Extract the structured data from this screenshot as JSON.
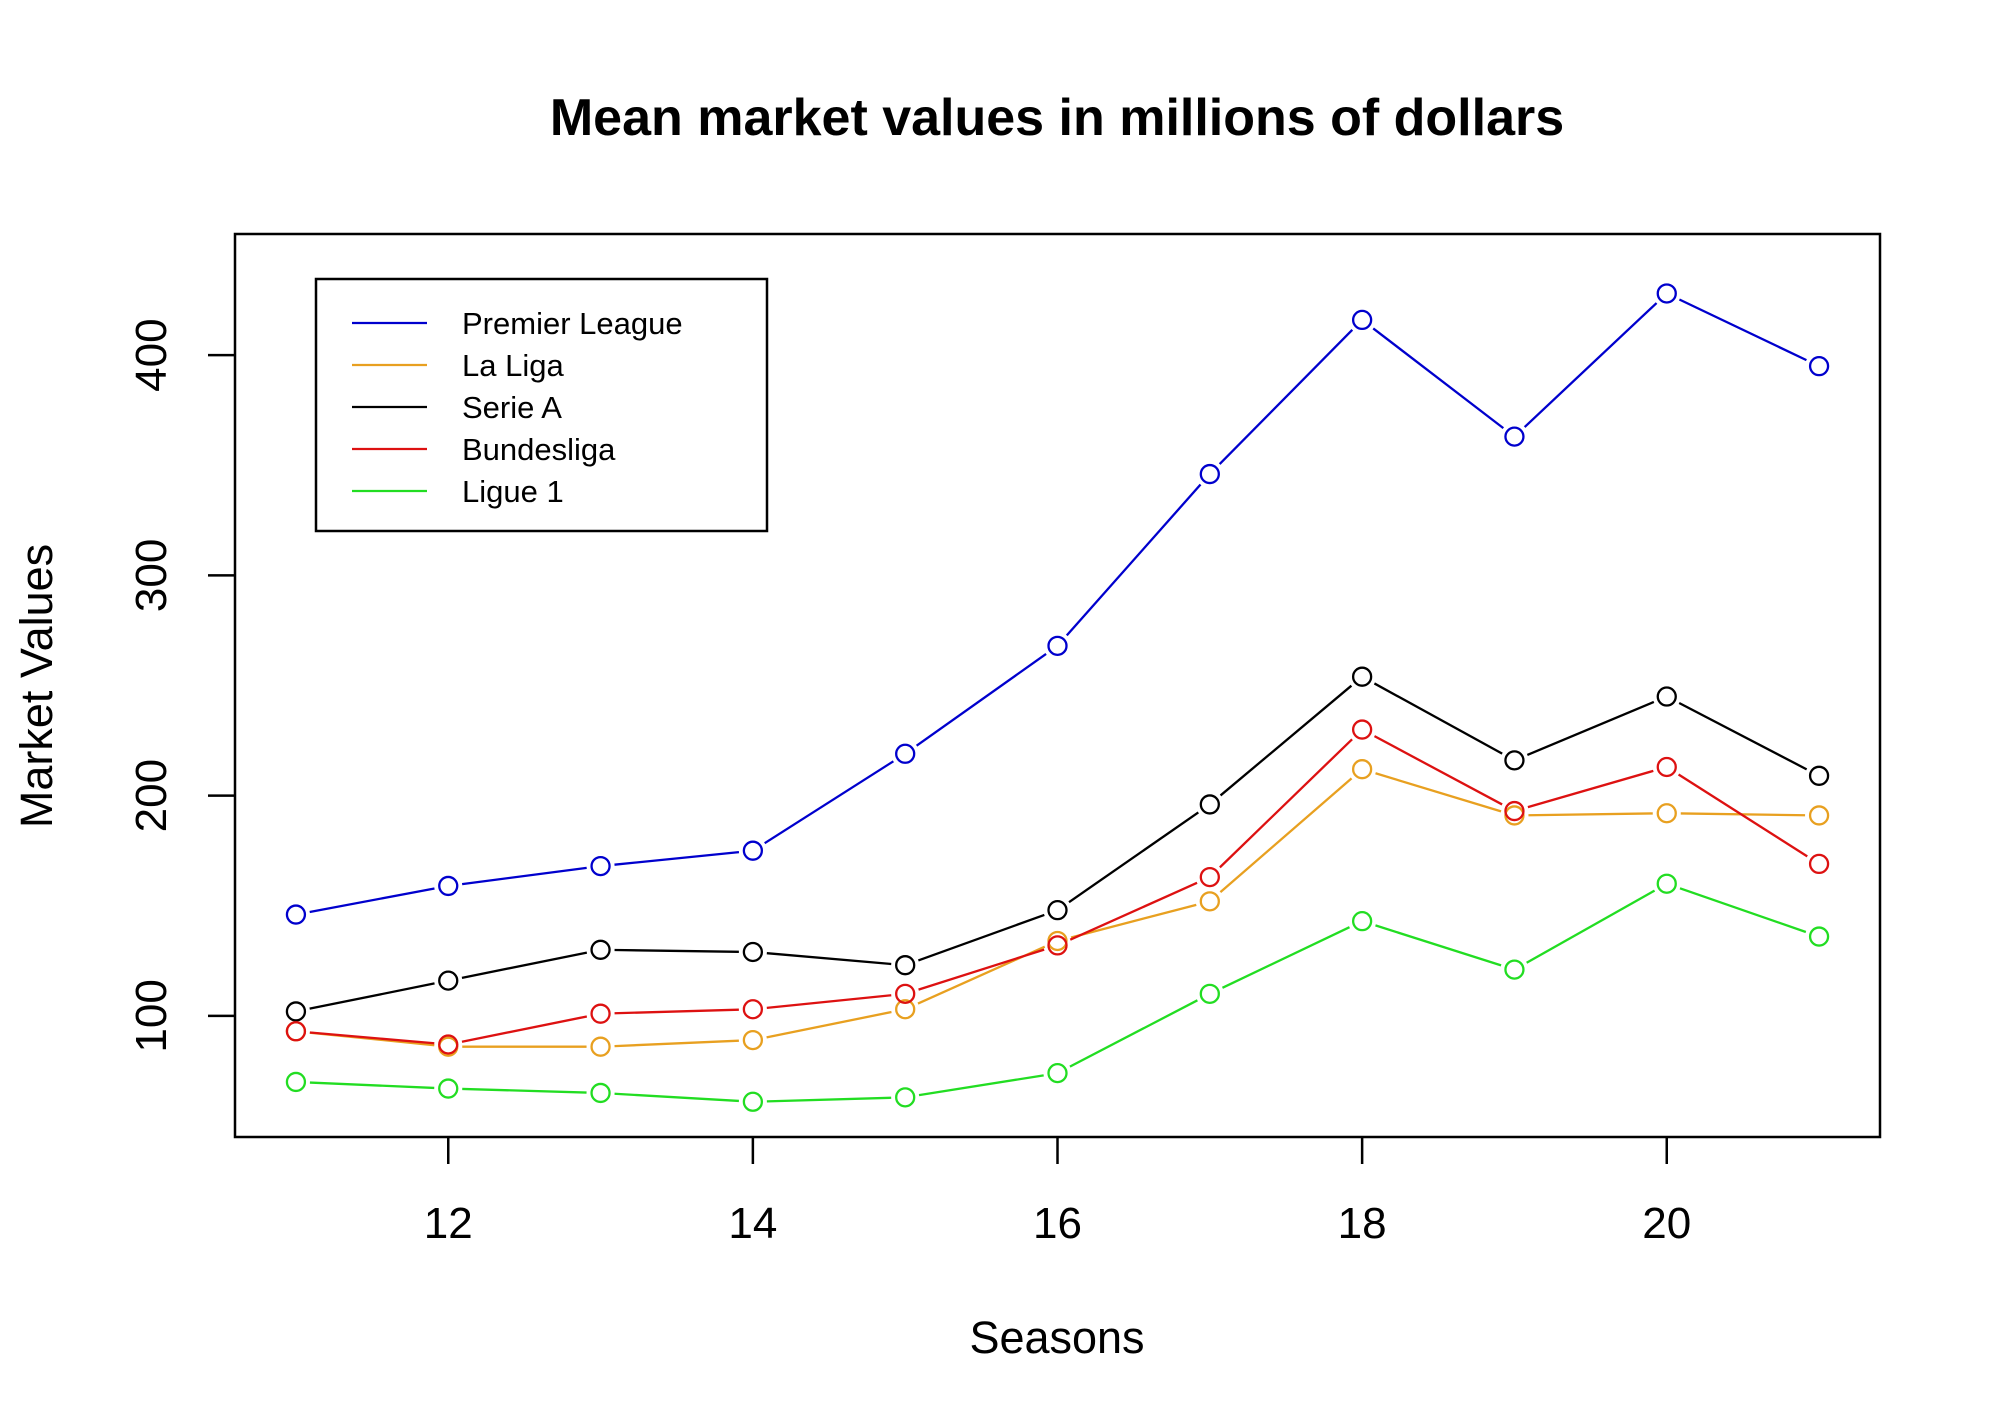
{
  "chart_data": {
    "type": "line",
    "title": "Mean market values in millions of dollars",
    "xlabel": "Seasons",
    "ylabel": "Market Values",
    "x": [
      11,
      12,
      13,
      14,
      15,
      16,
      17,
      18,
      19,
      20,
      21
    ],
    "xlim": [
      10.6,
      21.4
    ],
    "ylim": [
      45,
      455
    ],
    "x_ticks": [
      12,
      14,
      16,
      18,
      20
    ],
    "y_ticks": [
      100,
      200,
      300,
      400
    ],
    "grid": false,
    "legend_position": "top-left",
    "markers": "open-circle",
    "series": [
      {
        "name": "Premier League",
        "color": "#0000cd",
        "values": [
          146,
          159,
          168,
          175,
          219,
          268,
          346,
          416,
          363,
          428,
          395
        ]
      },
      {
        "name": "La Liga",
        "color": "#e8a020",
        "values": [
          93,
          86,
          86,
          89,
          103,
          134,
          152,
          212,
          191,
          192,
          191
        ]
      },
      {
        "name": "Serie A",
        "color": "#000000",
        "values": [
          102,
          116,
          130,
          129,
          123,
          148,
          196,
          254,
          216,
          245,
          209
        ]
      },
      {
        "name": "Bundesliga",
        "color": "#dd1111",
        "values": [
          93,
          87,
          101,
          103,
          110,
          132,
          163,
          230,
          193,
          213,
          169
        ]
      },
      {
        "name": "Ligue 1",
        "color": "#22dd22",
        "values": [
          70,
          67,
          65,
          61,
          63,
          74,
          110,
          143,
          121,
          160,
          136
        ]
      }
    ]
  }
}
